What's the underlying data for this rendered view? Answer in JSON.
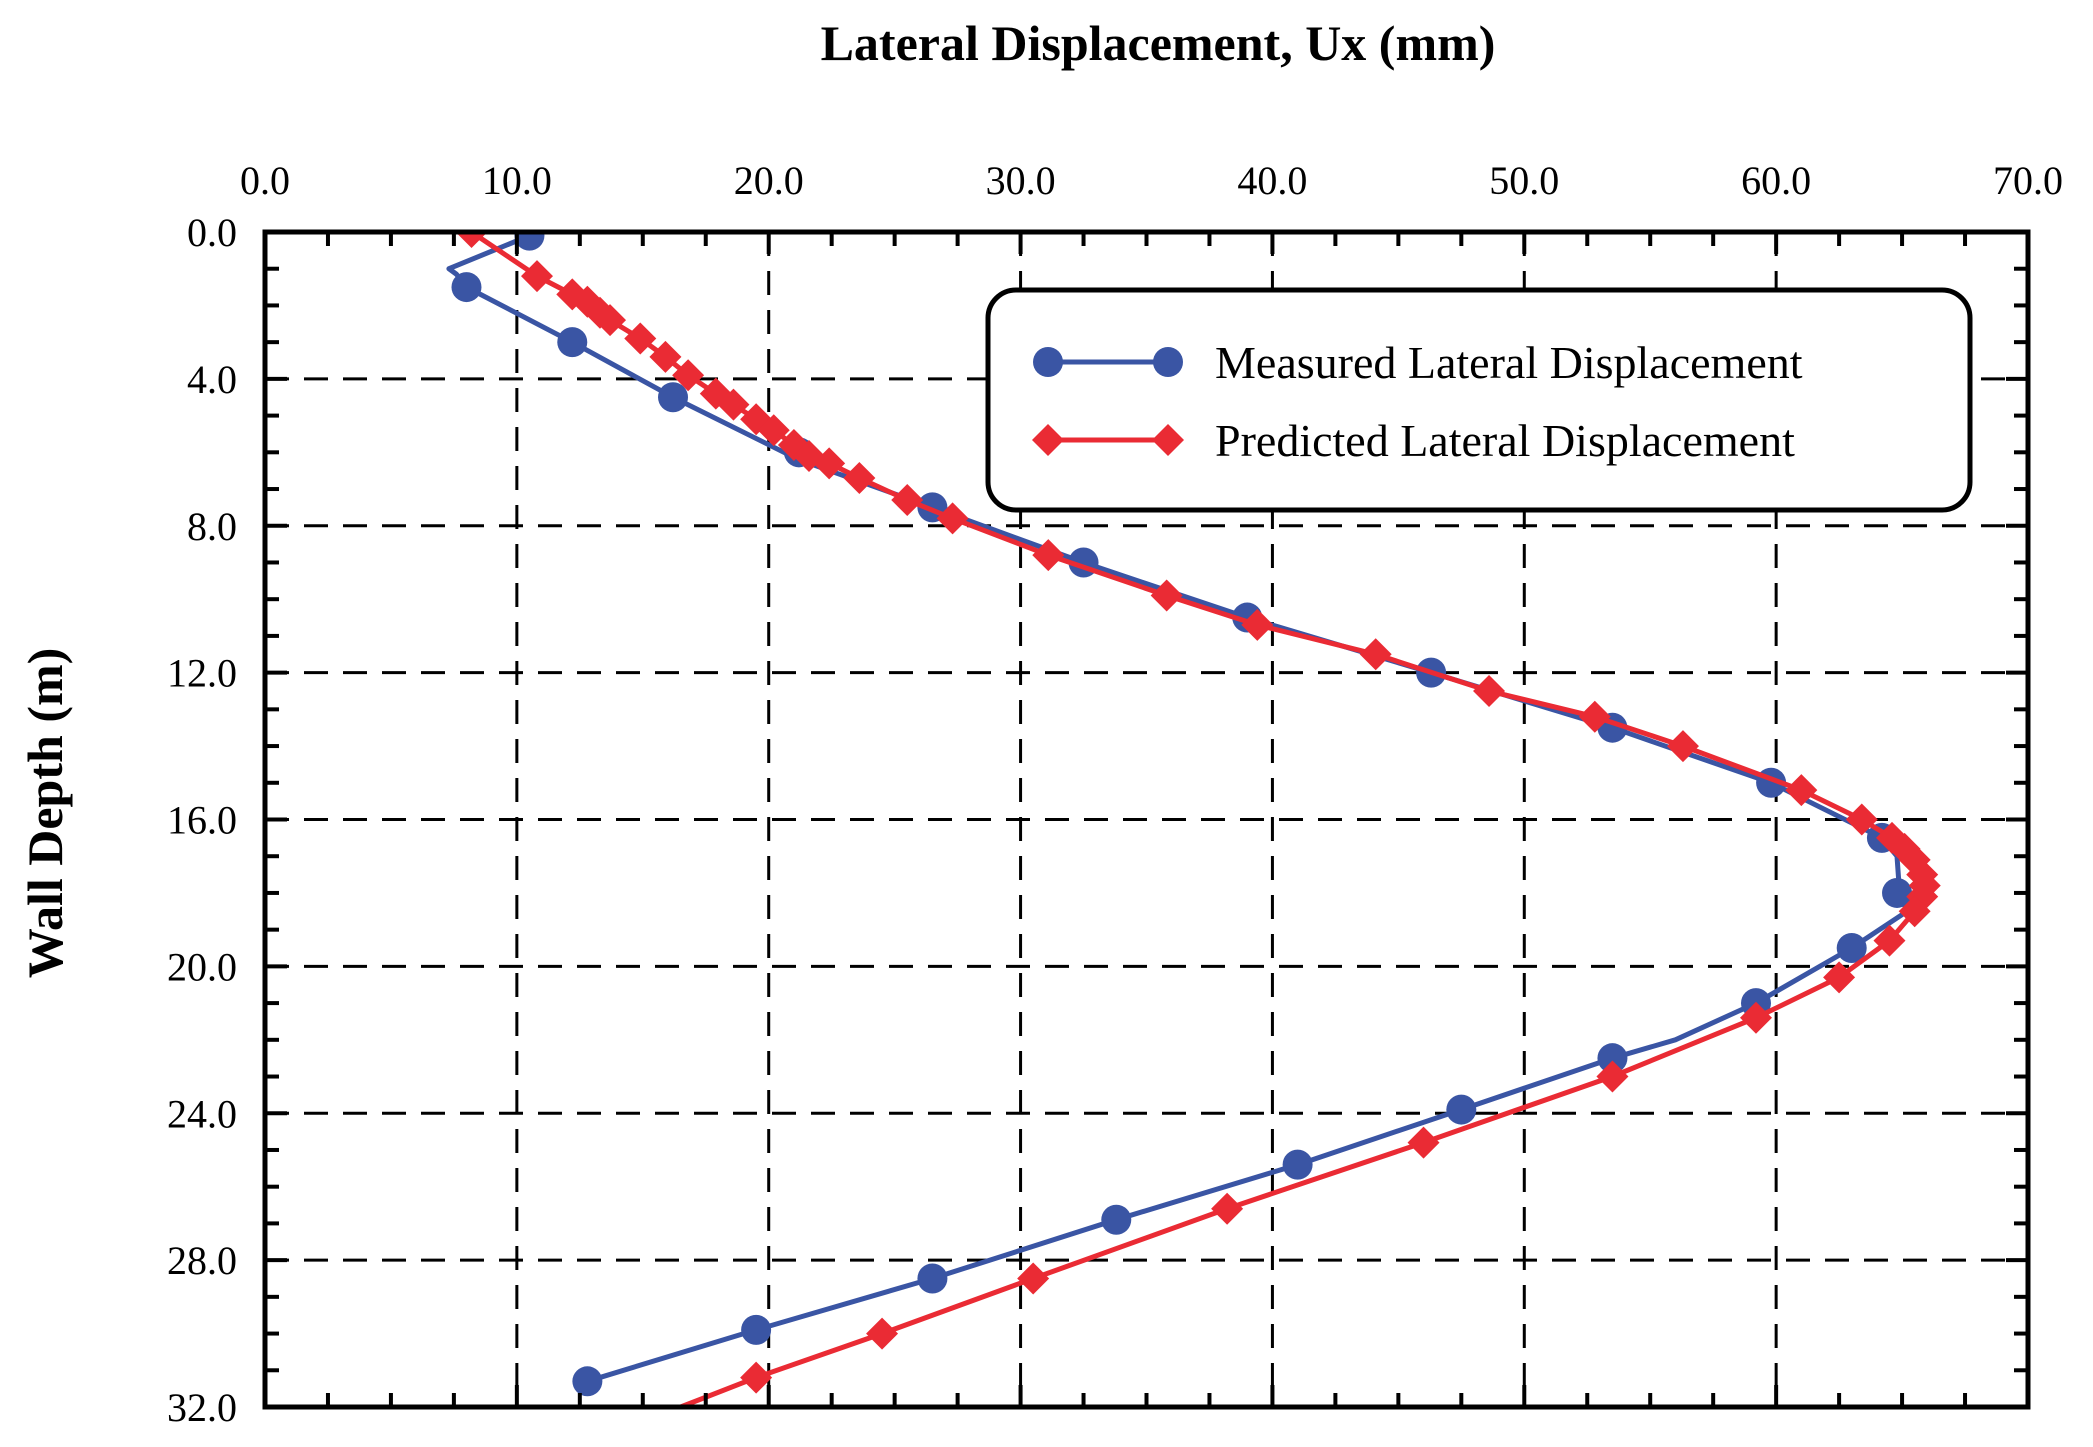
{
  "chart_data": {
    "type": "line",
    "title": "Lateral Displacement, Ux (mm)",
    "xlabel": "Lateral Displacement, Ux (mm)",
    "ylabel": "Wall Depth (m)",
    "xlim": [
      0,
      70
    ],
    "ylim": [
      0,
      32
    ],
    "x_axis_position": "top",
    "y_inverted": true,
    "x_ticks": [
      {
        "value": 0,
        "label": "0.0"
      },
      {
        "value": 10,
        "label": "10.0"
      },
      {
        "value": 20,
        "label": "20.0"
      },
      {
        "value": 30,
        "label": "30.0"
      },
      {
        "value": 40,
        "label": "40.0"
      },
      {
        "value": 50,
        "label": "50.0"
      },
      {
        "value": 60,
        "label": "60.0"
      },
      {
        "value": 70,
        "label": "70.0"
      }
    ],
    "y_ticks": [
      {
        "value": 0,
        "label": "0.0"
      },
      {
        "value": 4,
        "label": "4.0"
      },
      {
        "value": 8,
        "label": "8.0"
      },
      {
        "value": 12,
        "label": "12.0"
      },
      {
        "value": 16,
        "label": "16.0"
      },
      {
        "value": 20,
        "label": "20.0"
      },
      {
        "value": 24,
        "label": "24.0"
      },
      {
        "value": 28,
        "label": "28.0"
      },
      {
        "value": 32,
        "label": "32.0"
      }
    ],
    "grid": true,
    "legend_position": "top-right",
    "series": [
      {
        "name": "Measured Lateral Displacement",
        "color": "#3a55a4",
        "marker": "circle",
        "line": [
          [
            10.5,
            0.1
          ],
          [
            7.3,
            1.0
          ],
          [
            7.6,
            1.15
          ],
          [
            8.0,
            1.5
          ],
          [
            12.2,
            3.0
          ],
          [
            16.2,
            4.5
          ],
          [
            21.2,
            6.2
          ],
          [
            26.5,
            7.5
          ],
          [
            32.5,
            9.0
          ],
          [
            39.0,
            10.5
          ],
          [
            46.3,
            12.0
          ],
          [
            53.5,
            13.5
          ],
          [
            59.8,
            15.0
          ],
          [
            64.2,
            16.5
          ],
          [
            64.8,
            17.0
          ],
          [
            64.9,
            18.0
          ],
          [
            65.2,
            18.5
          ],
          [
            63.0,
            19.5
          ],
          [
            59.2,
            21.0
          ],
          [
            56.0,
            22.0
          ],
          [
            53.5,
            22.5
          ],
          [
            47.5,
            23.9
          ],
          [
            41.0,
            25.4
          ],
          [
            33.8,
            26.9
          ],
          [
            26.5,
            28.5
          ],
          [
            19.5,
            29.9
          ],
          [
            12.8,
            31.3
          ]
        ],
        "points": [
          [
            10.5,
            0.1
          ],
          [
            8.0,
            1.5
          ],
          [
            12.2,
            3.0
          ],
          [
            16.2,
            4.5
          ],
          [
            21.2,
            6.0
          ],
          [
            26.5,
            7.5
          ],
          [
            32.5,
            9.0
          ],
          [
            39.0,
            10.5
          ],
          [
            46.3,
            12.0
          ],
          [
            53.5,
            13.5
          ],
          [
            59.8,
            15.0
          ],
          [
            64.2,
            16.5
          ],
          [
            64.8,
            18.0
          ],
          [
            63.0,
            19.5
          ],
          [
            59.2,
            21.0
          ],
          [
            53.5,
            22.5
          ],
          [
            47.5,
            23.9
          ],
          [
            41.0,
            25.4
          ],
          [
            33.8,
            26.9
          ],
          [
            26.5,
            28.5
          ],
          [
            19.5,
            29.9
          ],
          [
            12.8,
            31.3
          ]
        ]
      },
      {
        "name": "Predicted Lateral Displacement",
        "color": "#ea2b34",
        "marker": "diamond",
        "line": [
          [
            8.2,
            0.0
          ],
          [
            10.8,
            1.2
          ],
          [
            12.2,
            1.7
          ],
          [
            12.8,
            1.9
          ],
          [
            13.3,
            2.2
          ],
          [
            13.7,
            2.4
          ],
          [
            14.9,
            2.9
          ],
          [
            15.9,
            3.4
          ],
          [
            16.8,
            3.9
          ],
          [
            17.9,
            4.4
          ],
          [
            18.6,
            4.7
          ],
          [
            19.5,
            5.1
          ],
          [
            20.2,
            5.4
          ],
          [
            21.0,
            5.8
          ],
          [
            21.6,
            6.1
          ],
          [
            22.4,
            6.3
          ],
          [
            23.6,
            6.7
          ],
          [
            25.5,
            7.3
          ],
          [
            27.3,
            7.8
          ],
          [
            31.1,
            8.8
          ],
          [
            35.8,
            9.9
          ],
          [
            39.4,
            10.7
          ],
          [
            44.1,
            11.5
          ],
          [
            48.6,
            12.5
          ],
          [
            52.8,
            13.2
          ],
          [
            56.3,
            14.0
          ],
          [
            61.0,
            15.2
          ],
          [
            63.4,
            16.0
          ],
          [
            64.6,
            16.5
          ],
          [
            65.1,
            16.8
          ],
          [
            65.5,
            17.1
          ],
          [
            65.8,
            17.5
          ],
          [
            65.9,
            17.8
          ],
          [
            65.8,
            18.1
          ],
          [
            65.5,
            18.5
          ],
          [
            64.5,
            19.3
          ],
          [
            62.5,
            20.3
          ],
          [
            59.2,
            21.4
          ],
          [
            53.5,
            23.0
          ],
          [
            46.0,
            24.8
          ],
          [
            38.2,
            26.6
          ],
          [
            30.5,
            28.5
          ],
          [
            24.5,
            30.0
          ],
          [
            19.5,
            31.2
          ],
          [
            16.5,
            32.0
          ]
        ],
        "points": [
          [
            8.2,
            0.0
          ],
          [
            10.8,
            1.2
          ],
          [
            12.2,
            1.7
          ],
          [
            12.8,
            1.9
          ],
          [
            13.3,
            2.2
          ],
          [
            13.7,
            2.4
          ],
          [
            14.9,
            2.9
          ],
          [
            15.9,
            3.4
          ],
          [
            16.8,
            3.9
          ],
          [
            17.9,
            4.4
          ],
          [
            18.6,
            4.7
          ],
          [
            19.5,
            5.1
          ],
          [
            20.2,
            5.4
          ],
          [
            21.0,
            5.8
          ],
          [
            21.6,
            6.1
          ],
          [
            22.4,
            6.3
          ],
          [
            23.6,
            6.7
          ],
          [
            25.5,
            7.3
          ],
          [
            27.3,
            7.8
          ],
          [
            31.1,
            8.8
          ],
          [
            35.8,
            9.9
          ],
          [
            39.4,
            10.7
          ],
          [
            44.1,
            11.5
          ],
          [
            48.6,
            12.5
          ],
          [
            52.8,
            13.2
          ],
          [
            56.3,
            14.0
          ],
          [
            61.0,
            15.2
          ],
          [
            63.4,
            16.0
          ],
          [
            64.6,
            16.5
          ],
          [
            65.1,
            16.8
          ],
          [
            65.5,
            17.1
          ],
          [
            65.8,
            17.5
          ],
          [
            65.9,
            17.8
          ],
          [
            65.8,
            18.1
          ],
          [
            65.5,
            18.5
          ],
          [
            64.5,
            19.3
          ],
          [
            62.5,
            20.3
          ],
          [
            59.2,
            21.4
          ],
          [
            53.5,
            23.0
          ],
          [
            46.0,
            24.8
          ],
          [
            38.2,
            26.6
          ],
          [
            30.5,
            28.5
          ],
          [
            24.5,
            30.0
          ],
          [
            19.5,
            31.2
          ]
        ]
      }
    ]
  }
}
